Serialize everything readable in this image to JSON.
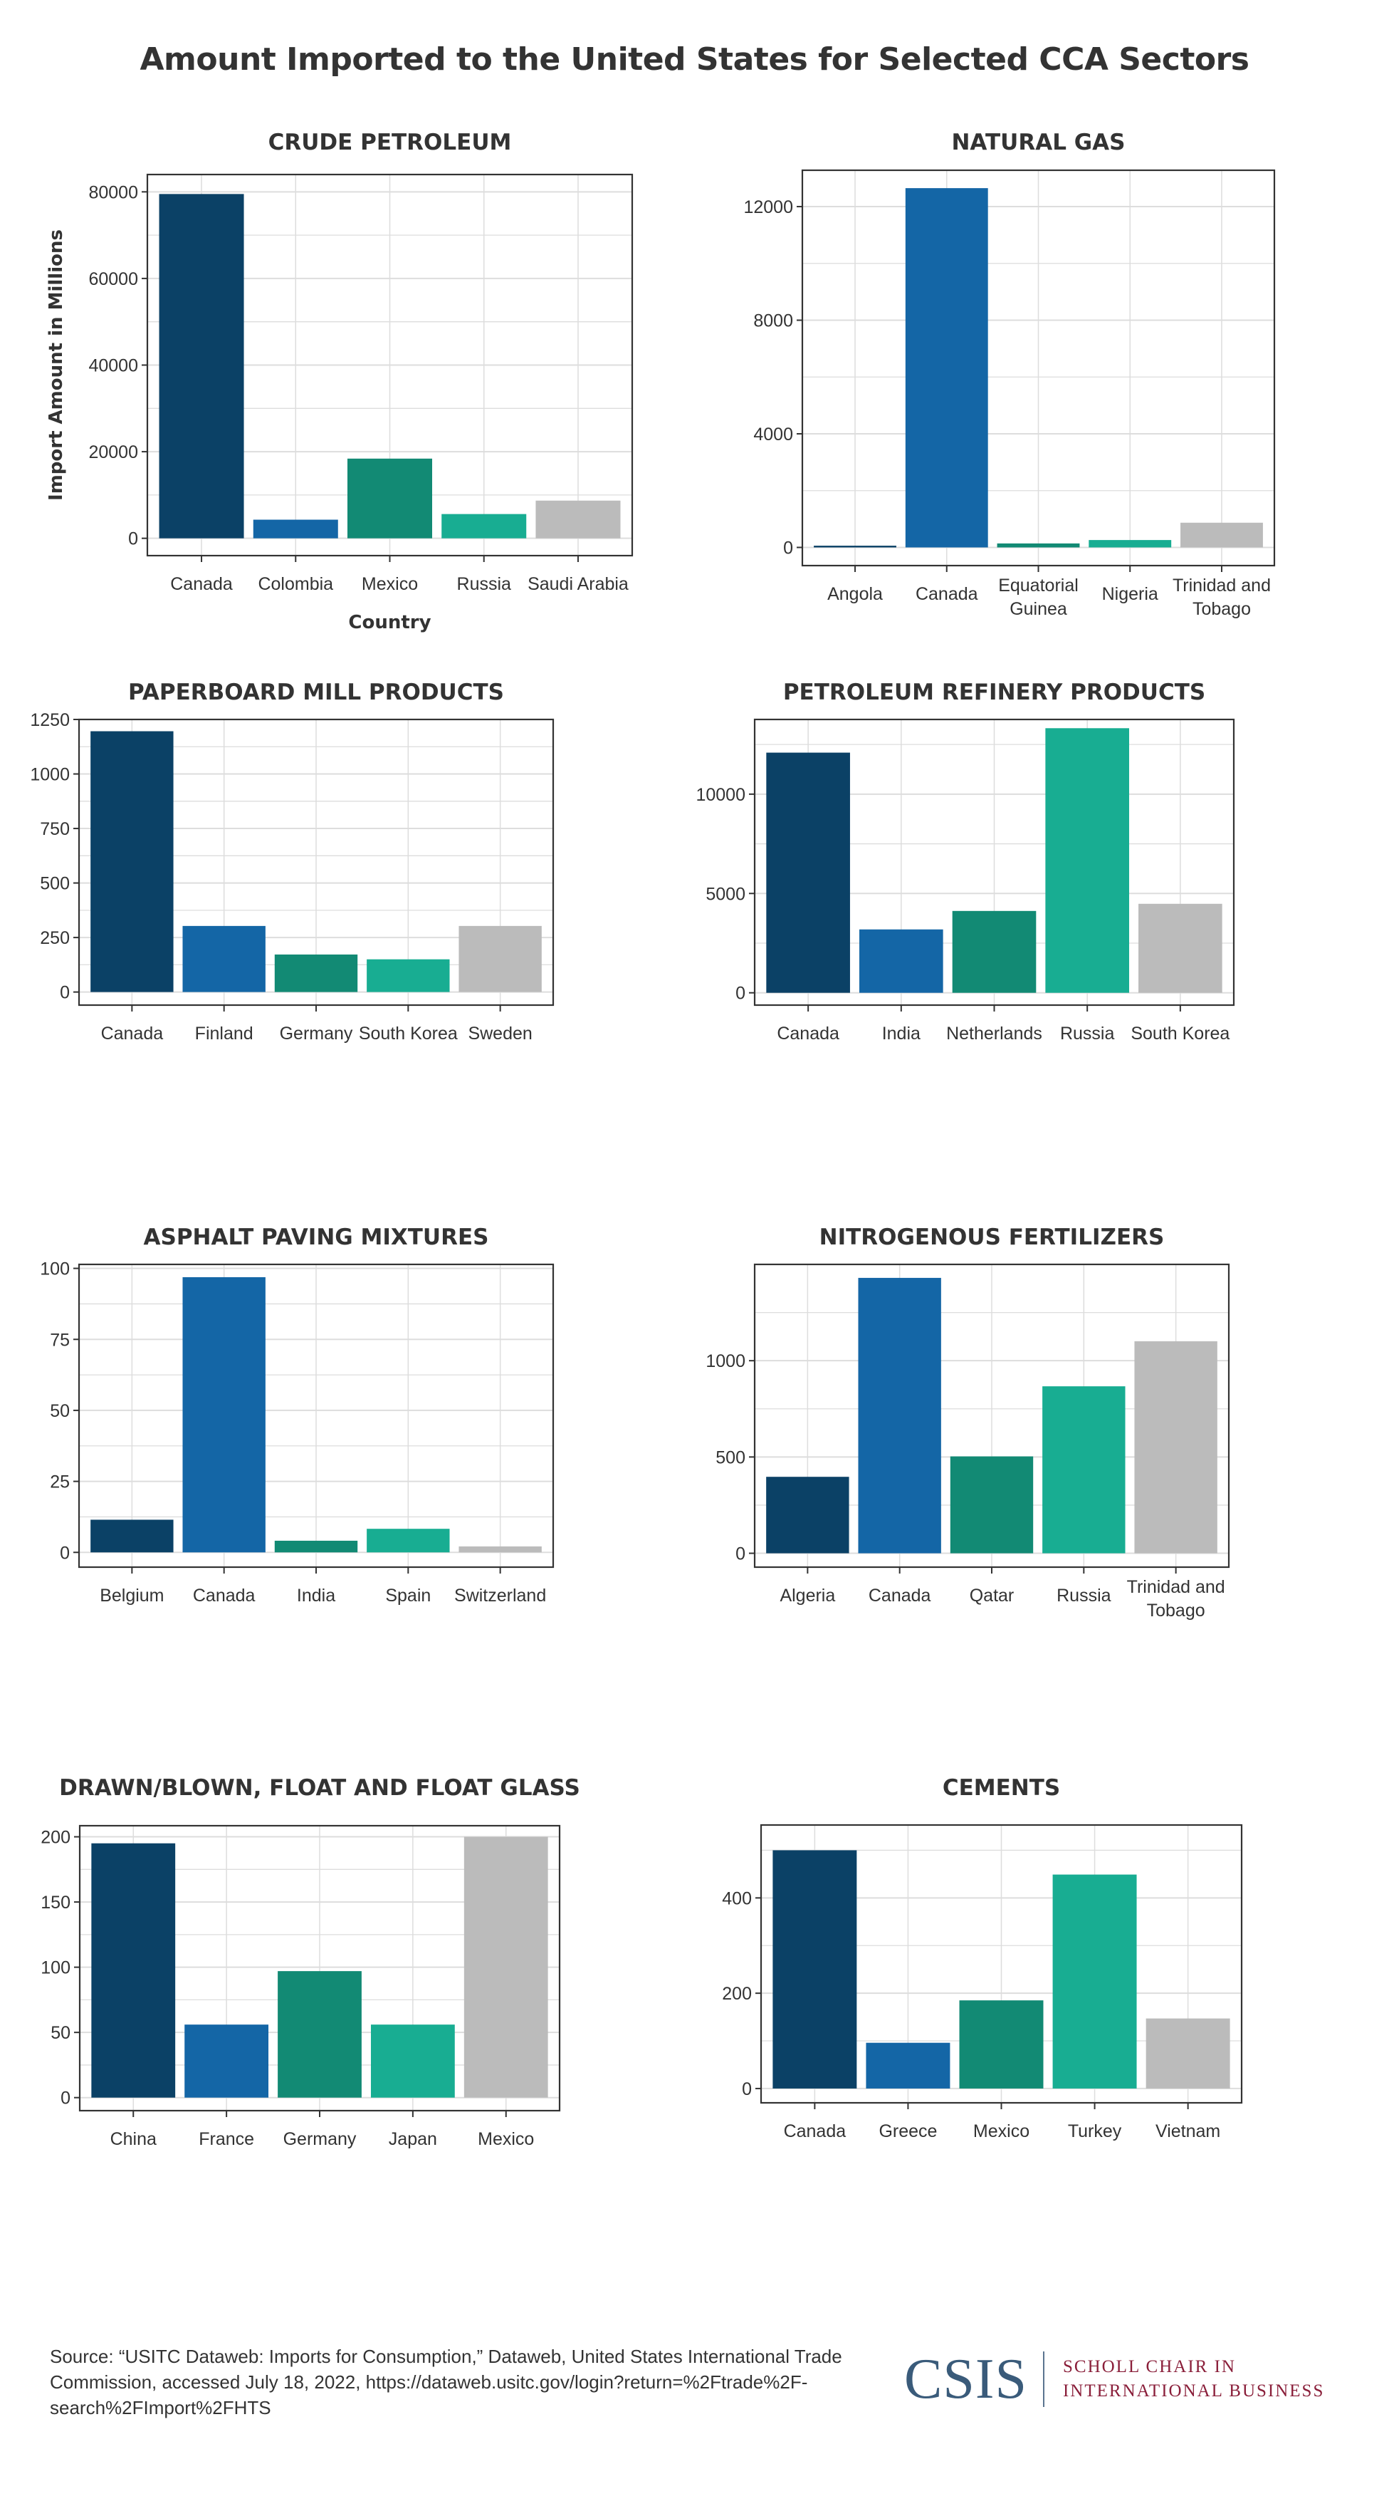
{
  "title": "Amount Imported to the United States for Selected CCA Sectors",
  "colors": [
    "#0b4166",
    "#1466a6",
    "#128a74",
    "#18ad92",
    "#bbbbbb"
  ],
  "chart_data": [
    {
      "type": "bar",
      "title": "CRUDE PETROLEUM",
      "xlabel": "Country",
      "ylabel": "Import Amount in Millions",
      "categories": [
        "Canada",
        "Colombia",
        "Mexico",
        "Russia",
        "Saudi Arabia"
      ],
      "values": [
        79500,
        4300,
        18400,
        5600,
        8700
      ],
      "yticks": [
        0,
        20000,
        40000,
        60000,
        80000
      ],
      "ylim": [
        -4000,
        84000
      ],
      "grid": true
    },
    {
      "type": "bar",
      "title": "NATURAL GAS",
      "xlabel": "",
      "ylabel": "",
      "categories": [
        "Angola",
        "Canada",
        "Equatorial Guinea",
        "Nigeria",
        "Trinidad and Tobago"
      ],
      "values": [
        60,
        12650,
        140,
        260,
        870
      ],
      "yticks": [
        0,
        4000,
        8000,
        12000
      ],
      "ylim": [
        -640,
        13280
      ],
      "grid": true
    },
    {
      "type": "bar",
      "title": "PAPERBOARD MILL PRODUCTS",
      "xlabel": "",
      "ylabel": "",
      "categories": [
        "Canada",
        "Finland",
        "Germany",
        "South Korea",
        "Sweden"
      ],
      "values": [
        1196,
        303,
        172,
        150,
        303
      ],
      "yticks": [
        0,
        250,
        500,
        750,
        1000,
        1250
      ],
      "ylim": [
        -60,
        1250
      ],
      "grid": true
    },
    {
      "type": "bar",
      "title": "PETROLEUM REFINERY PRODUCTS",
      "xlabel": "",
      "ylabel": "",
      "categories": [
        "Canada",
        "India",
        "Netherlands",
        "Russia",
        "South Korea"
      ],
      "values": [
        12090,
        3190,
        4120,
        13320,
        4480
      ],
      "yticks": [
        0,
        5000,
        10000
      ],
      "ylim": [
        -620,
        13760
      ],
      "grid": true
    },
    {
      "type": "bar",
      "title": "ASPHALT PAVING MIXTURES",
      "xlabel": "",
      "ylabel": "",
      "categories": [
        "Belgium",
        "Canada",
        "India",
        "Spain",
        "Switzerland"
      ],
      "values": [
        11.5,
        96.9,
        4.1,
        8.3,
        2.1
      ],
      "yticks": [
        0,
        25,
        50,
        75,
        100
      ],
      "ylim": [
        -5.2,
        101.4
      ],
      "grid": true
    },
    {
      "type": "bar",
      "title": "NITROGENOUS FERTILIZERS",
      "xlabel": "",
      "ylabel": "",
      "categories": [
        "Algeria",
        "Canada",
        "Qatar",
        "Russia",
        "Trinidad and Tobago"
      ],
      "values": [
        397,
        1430,
        503,
        867,
        1101
      ],
      "yticks": [
        0,
        500,
        1000
      ],
      "ylim": [
        -72,
        1500
      ],
      "grid": true
    },
    {
      "type": "bar",
      "title": "DRAWN/BLOWN, FLOAT AND FLOAT GLASS",
      "xlabel": "",
      "ylabel": "",
      "categories": [
        "China",
        "France",
        "Germany",
        "Japan",
        "Mexico"
      ],
      "values": [
        195,
        56,
        97,
        56,
        200
      ],
      "yticks": [
        0,
        50,
        100,
        150,
        200
      ],
      "ylim": [
        -10,
        208.5
      ],
      "grid": true
    },
    {
      "type": "bar",
      "title": "CEMENTS",
      "xlabel": "",
      "ylabel": "",
      "categories": [
        "Canada",
        "Greece",
        "Mexico",
        "Turkey",
        "Vietnam"
      ],
      "values": [
        500,
        96,
        185,
        449,
        147
      ],
      "yticks": [
        0,
        200,
        400
      ],
      "ylim": [
        -30,
        553
      ],
      "grid": true
    }
  ],
  "footer": {
    "source": "Source: “USITC Dataweb: Imports for Consumption,” Dataweb, United States International Trade Commission, accessed July 18, 2022, https://dataweb.usitc.gov/login?return=%2Ftrade%2F-search%2FImport%2FHTS",
    "logo_main": "CSIS",
    "logo_line1": "SCHOLL CHAIR IN",
    "logo_line2": "INTERNATIONAL BUSINESS"
  }
}
